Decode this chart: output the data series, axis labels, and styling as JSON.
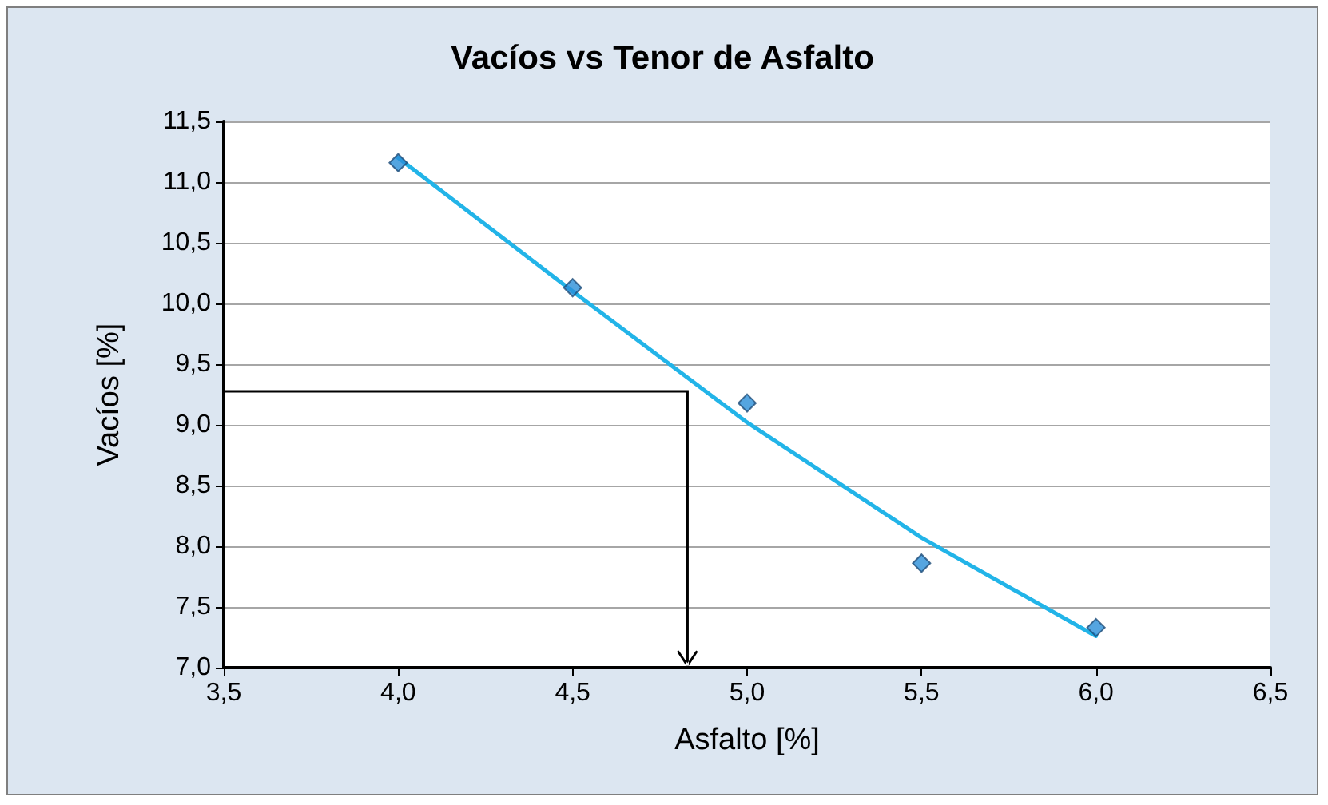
{
  "chart_data": {
    "type": "scatter",
    "title": "Vacíos vs Tenor de Asfalto",
    "xlabel": "Asfalto [%]",
    "ylabel": "Vacíos [%]",
    "x": [
      4.0,
      4.5,
      5.0,
      5.5,
      6.0
    ],
    "series": [
      {
        "color": "#2b8fd8",
        "marker": "diamond",
        "values": [
          11.16,
          10.13,
          9.18,
          7.86,
          7.33
        ]
      },
      {
        "type": "line",
        "color": "#22b4e8",
        "marker": "none",
        "x": [
          4.0,
          4.5,
          5.0,
          5.5,
          6.0
        ],
        "values": [
          11.2,
          10.1,
          9.02,
          8.07,
          7.26
        ]
      }
    ],
    "xlim": [
      3.5,
      6.5
    ],
    "xticks": [
      {
        "value": 3.5,
        "label": "3,5"
      },
      {
        "value": 4.0,
        "label": "4,0"
      },
      {
        "value": 4.5,
        "label": "4,5"
      },
      {
        "value": 5.0,
        "label": "5,0"
      },
      {
        "value": 5.5,
        "label": "5,5"
      },
      {
        "value": 6.0,
        "label": "6,0"
      },
      {
        "value": 6.5,
        "label": "6,5"
      }
    ],
    "ylim": [
      7.0,
      11.5
    ],
    "yticks": [
      {
        "value": 7.0,
        "label": "7,0"
      },
      {
        "value": 7.5,
        "label": "7,5"
      },
      {
        "value": 8.0,
        "label": "8,0"
      },
      {
        "value": 8.5,
        "label": "8,5"
      },
      {
        "value": 9.0,
        "label": "9,0"
      },
      {
        "value": 9.5,
        "label": "9,5"
      },
      {
        "value": 10.0,
        "label": "10,0"
      },
      {
        "value": 10.5,
        "label": "10,5"
      },
      {
        "value": 11.0,
        "label": "11,0"
      },
      {
        "value": 11.5,
        "label": "11,5"
      }
    ],
    "grid": "y"
  }
}
